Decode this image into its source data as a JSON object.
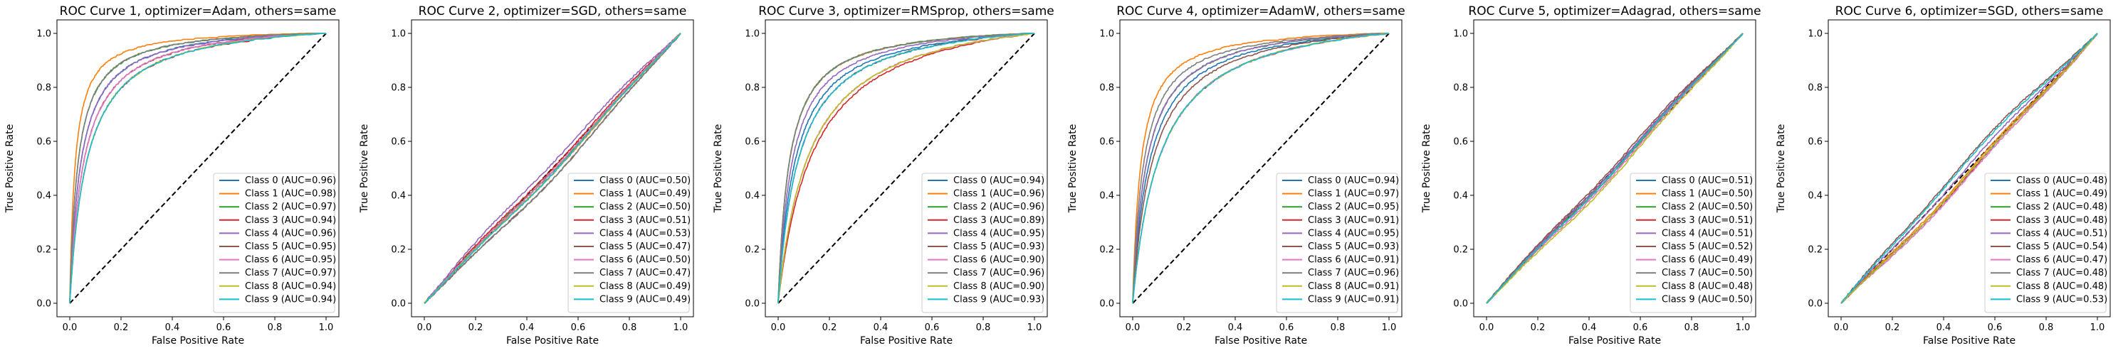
{
  "figure": {
    "background": "#ffffff",
    "class_colors": [
      "#1f77b4",
      "#ff7f0e",
      "#2ca02c",
      "#d62728",
      "#9467bd",
      "#8c564b",
      "#e377c2",
      "#7f7f7f",
      "#bcbd22",
      "#17becf"
    ]
  },
  "chart_data": [
    {
      "type": "line",
      "title": "ROC Curve 1, optimizer=Adam, others=same",
      "xlabel": "False Positive Rate",
      "ylabel": "True Positive Rate",
      "xlim": [
        -0.05,
        1.05
      ],
      "ylim": [
        -0.05,
        1.05
      ],
      "ticks": [
        "0.0",
        "0.2",
        "0.4",
        "0.6",
        "0.8",
        "1.0"
      ],
      "grid": false,
      "legend_position": "lower right",
      "diagonal": true,
      "series": [
        {
          "name": "Class 0 (AUC=0.96)",
          "auc": 0.96
        },
        {
          "name": "Class 1 (AUC=0.98)",
          "auc": 0.98
        },
        {
          "name": "Class 2 (AUC=0.97)",
          "auc": 0.97
        },
        {
          "name": "Class 3 (AUC=0.94)",
          "auc": 0.94
        },
        {
          "name": "Class 4 (AUC=0.96)",
          "auc": 0.96
        },
        {
          "name": "Class 5 (AUC=0.95)",
          "auc": 0.95
        },
        {
          "name": "Class 6 (AUC=0.95)",
          "auc": 0.95
        },
        {
          "name": "Class 7 (AUC=0.97)",
          "auc": 0.97
        },
        {
          "name": "Class 8 (AUC=0.94)",
          "auc": 0.94
        },
        {
          "name": "Class 9 (AUC=0.94)",
          "auc": 0.94
        }
      ]
    },
    {
      "type": "line",
      "title": "ROC Curve 2, optimizer=SGD, others=same",
      "xlabel": "False Positive Rate",
      "ylabel": "True Positive Rate",
      "xlim": [
        -0.05,
        1.05
      ],
      "ylim": [
        -0.05,
        1.05
      ],
      "ticks": [
        "0.0",
        "0.2",
        "0.4",
        "0.6",
        "0.8",
        "1.0"
      ],
      "grid": false,
      "legend_position": "lower right",
      "diagonal": true,
      "series": [
        {
          "name": "Class 0 (AUC=0.50)",
          "auc": 0.5
        },
        {
          "name": "Class 1 (AUC=0.49)",
          "auc": 0.49
        },
        {
          "name": "Class 2 (AUC=0.50)",
          "auc": 0.5
        },
        {
          "name": "Class 3 (AUC=0.51)",
          "auc": 0.51
        },
        {
          "name": "Class 4 (AUC=0.53)",
          "auc": 0.53
        },
        {
          "name": "Class 5 (AUC=0.47)",
          "auc": 0.47
        },
        {
          "name": "Class 6 (AUC=0.50)",
          "auc": 0.5
        },
        {
          "name": "Class 7 (AUC=0.47)",
          "auc": 0.47
        },
        {
          "name": "Class 8 (AUC=0.49)",
          "auc": 0.49
        },
        {
          "name": "Class 9 (AUC=0.49)",
          "auc": 0.49
        }
      ]
    },
    {
      "type": "line",
      "title": "ROC Curve 3, optimizer=RMSprop, others=same",
      "xlabel": "False Positive Rate",
      "ylabel": "True Positive Rate",
      "xlim": [
        -0.05,
        1.05
      ],
      "ylim": [
        -0.05,
        1.05
      ],
      "ticks": [
        "0.0",
        "0.2",
        "0.4",
        "0.6",
        "0.8",
        "1.0"
      ],
      "grid": false,
      "legend_position": "lower right",
      "diagonal": true,
      "series": [
        {
          "name": "Class 0 (AUC=0.94)",
          "auc": 0.94
        },
        {
          "name": "Class 1 (AUC=0.96)",
          "auc": 0.96
        },
        {
          "name": "Class 2 (AUC=0.96)",
          "auc": 0.96
        },
        {
          "name": "Class 3 (AUC=0.89)",
          "auc": 0.89
        },
        {
          "name": "Class 4 (AUC=0.95)",
          "auc": 0.95
        },
        {
          "name": "Class 5 (AUC=0.93)",
          "auc": 0.93
        },
        {
          "name": "Class 6 (AUC=0.90)",
          "auc": 0.9
        },
        {
          "name": "Class 7 (AUC=0.96)",
          "auc": 0.96
        },
        {
          "name": "Class 8 (AUC=0.90)",
          "auc": 0.9
        },
        {
          "name": "Class 9 (AUC=0.93)",
          "auc": 0.93
        }
      ]
    },
    {
      "type": "line",
      "title": "ROC Curve 4, optimizer=AdamW, others=same",
      "xlabel": "False Positive Rate",
      "ylabel": "True Positive Rate",
      "xlim": [
        -0.05,
        1.05
      ],
      "ylim": [
        -0.05,
        1.05
      ],
      "ticks": [
        "0.0",
        "0.2",
        "0.4",
        "0.6",
        "0.8",
        "1.0"
      ],
      "grid": false,
      "legend_position": "lower right",
      "diagonal": true,
      "series": [
        {
          "name": "Class 0 (AUC=0.94)",
          "auc": 0.94
        },
        {
          "name": "Class 1 (AUC=0.97)",
          "auc": 0.97
        },
        {
          "name": "Class 2 (AUC=0.95)",
          "auc": 0.95
        },
        {
          "name": "Class 3 (AUC=0.91)",
          "auc": 0.91
        },
        {
          "name": "Class 4 (AUC=0.95)",
          "auc": 0.95
        },
        {
          "name": "Class 5 (AUC=0.93)",
          "auc": 0.93
        },
        {
          "name": "Class 6 (AUC=0.91)",
          "auc": 0.91
        },
        {
          "name": "Class 7 (AUC=0.96)",
          "auc": 0.96
        },
        {
          "name": "Class 8 (AUC=0.91)",
          "auc": 0.91
        },
        {
          "name": "Class 9 (AUC=0.91)",
          "auc": 0.91
        }
      ]
    },
    {
      "type": "line",
      "title": "ROC Curve 5, optimizer=Adagrad, others=same",
      "xlabel": "False Positive Rate",
      "ylabel": "True Positive Rate",
      "xlim": [
        -0.05,
        1.05
      ],
      "ylim": [
        -0.05,
        1.05
      ],
      "ticks": [
        "0.0",
        "0.2",
        "0.4",
        "0.6",
        "0.8",
        "1.0"
      ],
      "grid": false,
      "legend_position": "lower right",
      "diagonal": true,
      "series": [
        {
          "name": "Class 0 (AUC=0.51)",
          "auc": 0.51
        },
        {
          "name": "Class 1 (AUC=0.50)",
          "auc": 0.5
        },
        {
          "name": "Class 2 (AUC=0.50)",
          "auc": 0.5
        },
        {
          "name": "Class 3 (AUC=0.51)",
          "auc": 0.51
        },
        {
          "name": "Class 4 (AUC=0.51)",
          "auc": 0.51
        },
        {
          "name": "Class 5 (AUC=0.52)",
          "auc": 0.52
        },
        {
          "name": "Class 6 (AUC=0.49)",
          "auc": 0.49
        },
        {
          "name": "Class 7 (AUC=0.50)",
          "auc": 0.5
        },
        {
          "name": "Class 8 (AUC=0.48)",
          "auc": 0.48
        },
        {
          "name": "Class 9 (AUC=0.50)",
          "auc": 0.5
        }
      ]
    },
    {
      "type": "line",
      "title": "ROC Curve 6, optimizer=SGD, others=same",
      "xlabel": "False Positive Rate",
      "ylabel": "True Positive Rate",
      "xlim": [
        -0.05,
        1.05
      ],
      "ylim": [
        -0.05,
        1.05
      ],
      "ticks": [
        "0.0",
        "0.2",
        "0.4",
        "0.6",
        "0.8",
        "1.0"
      ],
      "grid": false,
      "legend_position": "lower right",
      "diagonal": true,
      "series": [
        {
          "name": "Class 0 (AUC=0.48)",
          "auc": 0.48
        },
        {
          "name": "Class 1 (AUC=0.49)",
          "auc": 0.49
        },
        {
          "name": "Class 2 (AUC=0.48)",
          "auc": 0.48
        },
        {
          "name": "Class 3 (AUC=0.48)",
          "auc": 0.48
        },
        {
          "name": "Class 4 (AUC=0.51)",
          "auc": 0.51
        },
        {
          "name": "Class 5 (AUC=0.54)",
          "auc": 0.54
        },
        {
          "name": "Class 6 (AUC=0.47)",
          "auc": 0.47
        },
        {
          "name": "Class 7 (AUC=0.48)",
          "auc": 0.48
        },
        {
          "name": "Class 8 (AUC=0.48)",
          "auc": 0.48
        },
        {
          "name": "Class 9 (AUC=0.53)",
          "auc": 0.53
        }
      ]
    }
  ]
}
